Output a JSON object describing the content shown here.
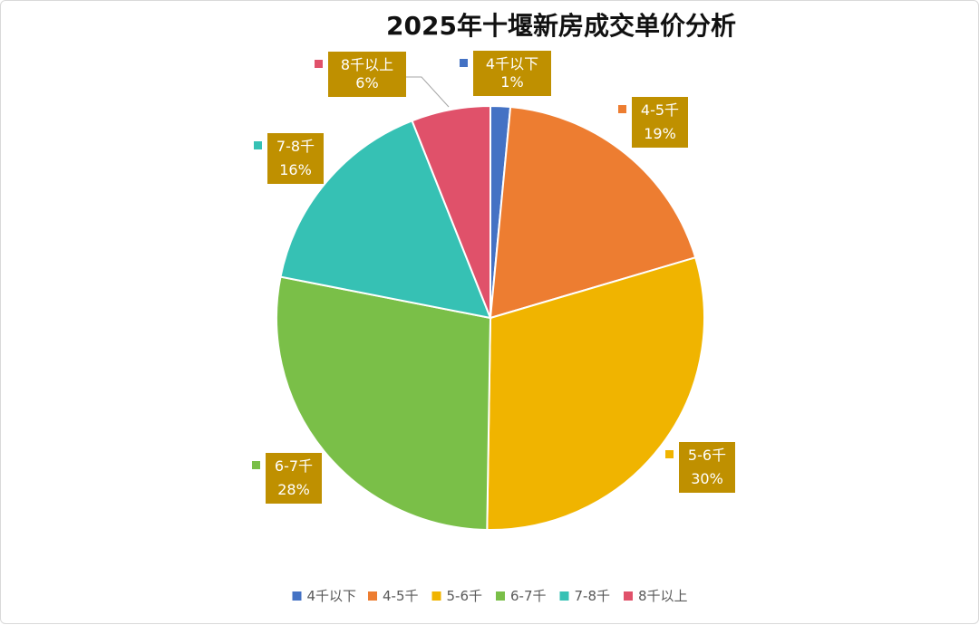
{
  "chart_data": {
    "type": "pie",
    "title": "2025年十堰新房成交单价分析",
    "categories": [
      "4千以下",
      "4-5千",
      "5-6千",
      "6-7千",
      "7-8千",
      "8千以上"
    ],
    "values": [
      1.5,
      19,
      30,
      28,
      16,
      6
    ],
    "percent_labels": [
      "1%",
      "19%",
      "30%",
      "28%",
      "16%",
      "6%"
    ],
    "colors": [
      "#4472c4",
      "#ed7d31",
      "#f0b400",
      "#7abf48",
      "#36c1b4",
      "#e0516a"
    ],
    "label_box_color": "#bf9000",
    "start_angle_deg": 0,
    "direction": "clockwise",
    "legend_position": "bottom"
  }
}
